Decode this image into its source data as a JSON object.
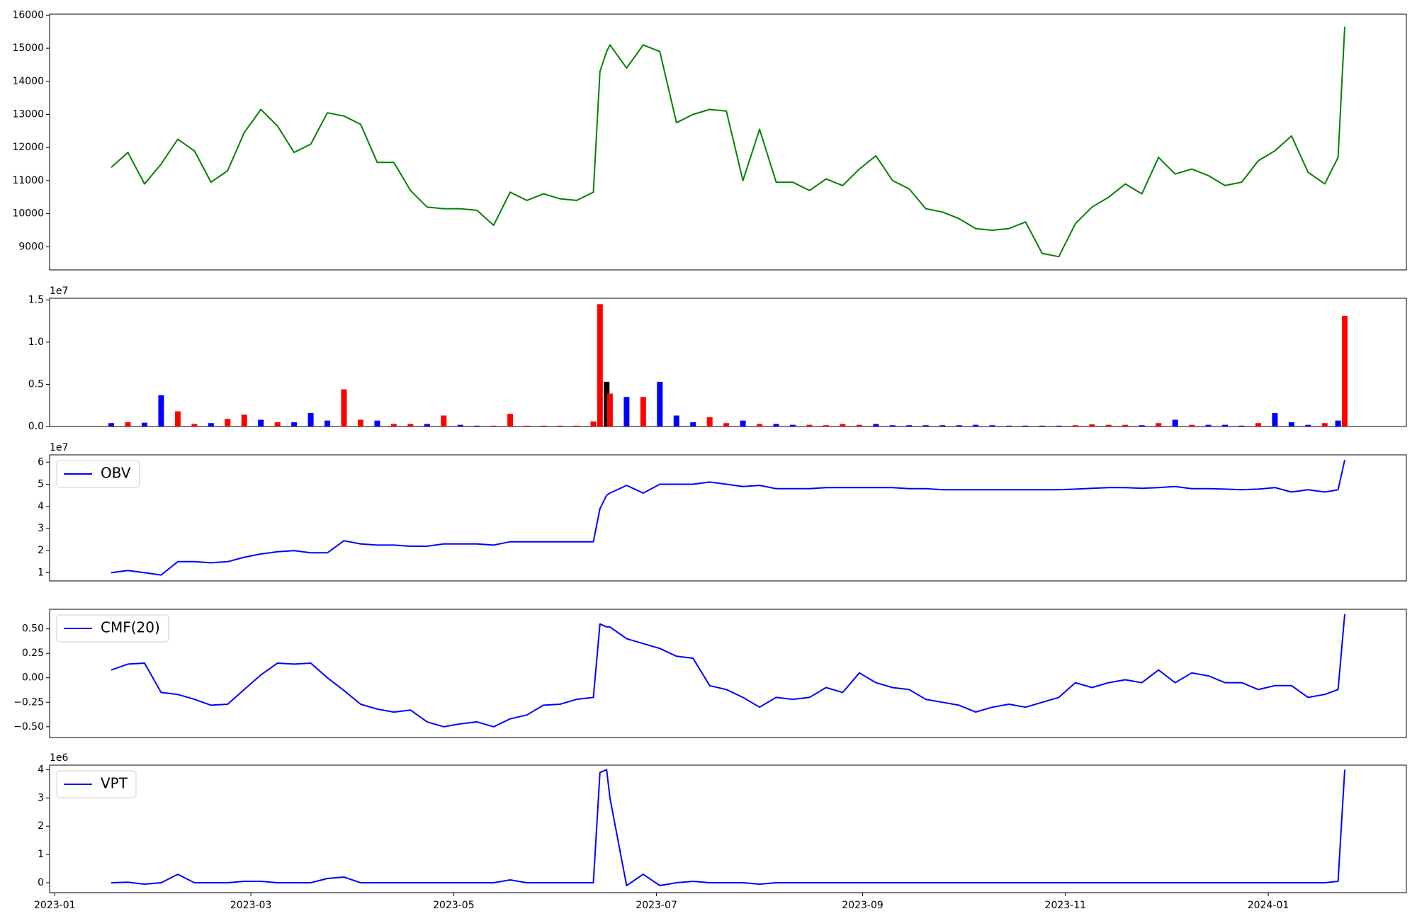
{
  "chart_data": {
    "type": "panels",
    "x": [
      19375,
      19380,
      19385,
      19390,
      19395,
      19400,
      19405,
      19410,
      19415,
      19420,
      19425,
      19430,
      19435,
      19440,
      19445,
      19450,
      19455,
      19460,
      19465,
      19470,
      19475,
      19480,
      19485,
      19490,
      19495,
      19500,
      19505,
      19510,
      19515,
      19520,
      19522,
      19524,
      19525,
      19530,
      19535,
      19540,
      19545,
      19550,
      19555,
      19560,
      19565,
      19570,
      19575,
      19580,
      19585,
      19590,
      19595,
      19600,
      19605,
      19610,
      19615,
      19620,
      19625,
      19630,
      19635,
      19640,
      19645,
      19650,
      19655,
      19660,
      19665,
      19670,
      19675,
      19680,
      19685,
      19690,
      19695,
      19700,
      19705,
      19710,
      19715,
      19720,
      19725,
      19730,
      19735,
      19740,
      19744,
      19746
    ],
    "xlim": [
      19356.45,
      19764.55
    ],
    "xticks": [
      {
        "value": 19358,
        "label": "2023-01"
      },
      {
        "value": 19417,
        "label": "2023-03"
      },
      {
        "value": 19478,
        "label": "2023-05"
      },
      {
        "value": 19539,
        "label": "2023-07"
      },
      {
        "value": 19601,
        "label": "2023-09"
      },
      {
        "value": 19662,
        "label": "2023-11"
      },
      {
        "value": 19723,
        "label": "2024-01"
      }
    ],
    "panels": [
      {
        "type": "line",
        "ylim": [
          8300,
          16030
        ],
        "yticks": [
          9000,
          10000,
          11000,
          12000,
          13000,
          14000,
          15000,
          16000
        ],
        "series": [
          {
            "color": "green",
            "values": [
              11400,
              11850,
              10900,
              11500,
              12250,
              11900,
              10950,
              11300,
              12450,
              13150,
              12650,
              11850,
              12100,
              13050,
              12950,
              12700,
              11550,
              11550,
              10700,
              10200,
              10150,
              10150,
              10100,
              9650,
              10650,
              10400,
              10600,
              10450,
              10400,
              10650,
              14300,
              14900,
              15100,
              14400,
              15100,
              14900,
              12750,
              13000,
              13150,
              13100,
              11000,
              12550,
              10950,
              10950,
              10700,
              11050,
              10850,
              11350,
              11750,
              11000,
              10750,
              10150,
              10050,
              9850,
              9550,
              9500,
              9550,
              9750,
              8800,
              8700,
              9700,
              10200,
              10500,
              10900,
              10600,
              11700,
              11200,
              11350,
              11150,
              10850,
              10950,
              11600,
              11900,
              12350,
              11250,
              10900,
              11700,
              15650
            ]
          }
        ]
      },
      {
        "type": "bar",
        "ylim": [
          0,
          15200000
        ],
        "offset_label": "1e7",
        "yticks": [
          {
            "value": 0,
            "label": "0.0"
          },
          {
            "value": 5000000,
            "label": "0.5"
          },
          {
            "value": 10000000,
            "label": "1.0"
          },
          {
            "value": 15000000,
            "label": "1.5"
          }
        ],
        "values": [
          400000,
          500000,
          450000,
          3700000,
          1800000,
          300000,
          400000,
          900000,
          1400000,
          800000,
          500000,
          500000,
          1600000,
          700000,
          4400000,
          800000,
          700000,
          300000,
          300000,
          300000,
          1300000,
          200000,
          100000,
          100000,
          1500000,
          100000,
          100000,
          100000,
          100000,
          600000,
          14500000,
          5300000,
          3900000,
          3500000,
          3500000,
          5300000,
          1300000,
          500000,
          1100000,
          400000,
          700000,
          300000,
          300000,
          200000,
          200000,
          150000,
          300000,
          200000,
          300000,
          150000,
          150000,
          150000,
          150000,
          150000,
          200000,
          150000,
          100000,
          100000,
          100000,
          100000,
          150000,
          250000,
          200000,
          200000,
          150000,
          400000,
          800000,
          200000,
          200000,
          200000,
          100000,
          400000,
          1600000,
          500000,
          200000,
          400000,
          700000,
          13100000
        ],
        "colors": [
          "blue",
          "red",
          "blue",
          "blue",
          "red",
          "red",
          "blue",
          "red",
          "red",
          "blue",
          "red",
          "blue",
          "blue",
          "blue",
          "red",
          "red",
          "blue",
          "red",
          "red",
          "blue",
          "red",
          "blue",
          "blue",
          "red",
          "red",
          "red",
          "red",
          "red",
          "red",
          "red",
          "red",
          "black",
          "red",
          "blue",
          "red",
          "blue",
          "blue",
          "blue",
          "red",
          "red",
          "blue",
          "red",
          "blue",
          "blue",
          "red",
          "red",
          "red",
          "red",
          "blue",
          "blue",
          "blue",
          "blue",
          "blue",
          "blue",
          "blue",
          "blue",
          "blue",
          "blue",
          "blue",
          "blue",
          "red",
          "red",
          "red",
          "red",
          "blue",
          "red",
          "blue",
          "red",
          "blue",
          "blue",
          "blue",
          "red",
          "blue",
          "blue",
          "blue",
          "red",
          "blue",
          "red"
        ]
      },
      {
        "type": "line",
        "ylim": [
          6300000,
          63300000
        ],
        "offset_label": "1e7",
        "legend": "upper left",
        "yticks": [
          {
            "value": 10000000,
            "label": "1"
          },
          {
            "value": 20000000,
            "label": "2"
          },
          {
            "value": 30000000,
            "label": "3"
          },
          {
            "value": 40000000,
            "label": "4"
          },
          {
            "value": 50000000,
            "label": "5"
          },
          {
            "value": 60000000,
            "label": "6"
          }
        ],
        "series": [
          {
            "name": "OBV",
            "color": "blue",
            "values": [
              10000000,
              11000000,
              10000000,
              9000000,
              15000000,
              15000000,
              14500000,
              15000000,
              17000000,
              18500000,
              19500000,
              20000000,
              19000000,
              19000000,
              24500000,
              23000000,
              22500000,
              22500000,
              22000000,
              22000000,
              23000000,
              23000000,
              23000000,
              22500000,
              24000000,
              24000000,
              24000000,
              24000000,
              24000000,
              24000000,
              39000000,
              45000000,
              46000000,
              49500000,
              46000000,
              50000000,
              50000000,
              50000000,
              51000000,
              50000000,
              49000000,
              49500000,
              48000000,
              48000000,
              48000000,
              48500000,
              48500000,
              48500000,
              48500000,
              48500000,
              48000000,
              48000000,
              47500000,
              47500000,
              47500000,
              47500000,
              47500000,
              47500000,
              47500000,
              47500000,
              47800000,
              48200000,
              48500000,
              48500000,
              48200000,
              48500000,
              49000000,
              48000000,
              48000000,
              47800000,
              47500000,
              47800000,
              48500000,
              46500000,
              47500000,
              46500000,
              47500000,
              61000000
            ]
          }
        ]
      },
      {
        "type": "line",
        "ylim": [
          -0.61,
          0.7
        ],
        "legend": "upper left",
        "yticks": [
          {
            "value": -0.5,
            "label": "−0.50"
          },
          {
            "value": -0.25,
            "label": "−0.25"
          },
          {
            "value": 0,
            "label": "0.00"
          },
          {
            "value": 0.25,
            "label": "0.25"
          },
          {
            "value": 0.5,
            "label": "0.50"
          }
        ],
        "series": [
          {
            "name": "CMF(20)",
            "color": "blue",
            "values": [
              0.08,
              0.14,
              0.15,
              -0.15,
              -0.17,
              -0.22,
              -0.28,
              -0.27,
              -0.12,
              0.03,
              0.15,
              0.14,
              0.15,
              0.0,
              -0.13,
              -0.27,
              -0.32,
              -0.35,
              -0.33,
              -0.45,
              -0.5,
              -0.47,
              -0.45,
              -0.5,
              -0.42,
              -0.38,
              -0.28,
              -0.27,
              -0.22,
              -0.2,
              0.55,
              0.52,
              0.52,
              0.4,
              0.35,
              0.3,
              0.22,
              0.2,
              -0.08,
              -0.12,
              -0.2,
              -0.3,
              -0.2,
              -0.22,
              -0.2,
              -0.1,
              -0.15,
              0.05,
              -0.05,
              -0.1,
              -0.12,
              -0.22,
              -0.25,
              -0.28,
              -0.35,
              -0.3,
              -0.27,
              -0.3,
              -0.25,
              -0.2,
              -0.05,
              -0.1,
              -0.05,
              -0.02,
              -0.05,
              0.08,
              -0.05,
              0.05,
              0.02,
              -0.05,
              -0.05,
              -0.12,
              -0.08,
              -0.08,
              -0.2,
              -0.17,
              -0.12,
              0.65
            ]
          }
        ]
      },
      {
        "type": "line",
        "ylim": [
          -350000,
          4160000
        ],
        "offset_label": "1e6",
        "legend": "upper left",
        "yticks": [
          0,
          {
            "value": 1000000,
            "label": "1"
          },
          {
            "value": 2000000,
            "label": "2"
          },
          {
            "value": 3000000,
            "label": "3"
          },
          {
            "value": 4000000,
            "label": "4"
          }
        ],
        "series": [
          {
            "name": "VPT",
            "color": "blue",
            "values": [
              0,
              20000,
              -50000,
              0,
              300000,
              0,
              0,
              0,
              50000,
              50000,
              0,
              0,
              0,
              150000,
              200000,
              0,
              0,
              0,
              0,
              0,
              0,
              0,
              0,
              0,
              100000,
              0,
              0,
              0,
              0,
              0,
              3900000,
              4000000,
              3000000,
              -100000,
              300000,
              -100000,
              0,
              50000,
              0,
              0,
              0,
              -50000,
              0,
              0,
              0,
              0,
              0,
              0,
              0,
              0,
              0,
              0,
              0,
              0,
              0,
              0,
              0,
              0,
              0,
              0,
              0,
              0,
              0,
              0,
              0,
              0,
              0,
              0,
              0,
              0,
              0,
              0,
              0,
              0,
              0,
              0,
              50000,
              4000000
            ]
          }
        ]
      }
    ]
  }
}
